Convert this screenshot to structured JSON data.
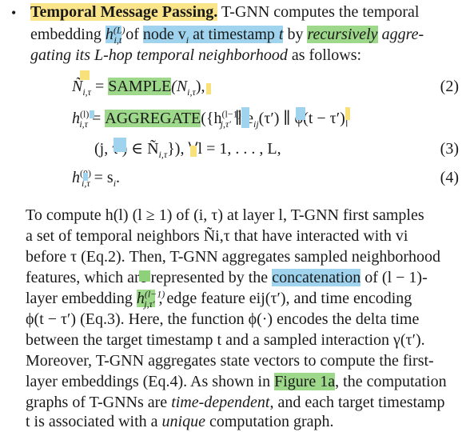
{
  "paragraph1": {
    "bullet": "•",
    "title": "Temporal Message Passing.",
    "l1_a": "T-GNN computes the temporal",
    "l2_a": "embedding",
    "l2_b": "of",
    "l2_c": "node v",
    "l2_c_sub": "i",
    "l2_d": "at timestamp",
    "l2_e": "t",
    "l2_f": "by",
    "l2_g": "recursively",
    "l2_h": "aggre-",
    "l3": "gating its L-hop temporal neighborhood",
    "l3_b": "as follows:"
  },
  "equations": {
    "eq2_lhs": "Ñ",
    "eq2_rhs_fn": "SAMPLE",
    "eq2_rhs_arg": "(N",
    "eq2_rhs_end": "),",
    "eq2_num": "(2)",
    "eq3_lhs": "h",
    "eq3_fn": "AGGREGATE",
    "eq3_body": "({h",
    "eq3_body2": "∥ e",
    "eq3_body3": "(τ′) ∥ ϕ(t − τ′)|",
    "eq3b_body": "(j, τ′) ∈ Ñ",
    "eq3b_end": "}), ∀l = 1, . . . , L,",
    "eq3_num": "(3)",
    "eq4_lhs": "h",
    "eq4_rhs": "= s",
    "eq4_end": ".",
    "eq4_num": "(4)"
  },
  "paragraph2": {
    "lines": [
      "To compute h(l) (l ≥ 1) of (i, τ) at layer l, T-GNN first samples",
      "a set of temporal neighbors Ñi,τ that have interacted with vi",
      "before τ (Eq.2). Then, T-GNN aggregates sampled neighborhood",
      "features, which are represented by the",
      "of (l − 1)-",
      "layer embedding",
      ", edge feature eij(τ′), and time encoding",
      "ϕ(t − τ′) (Eq.3). Here, the function ϕ(·) encodes the delta time",
      "between the target timestamp t and a sampled interaction γ(τ′).",
      "Moreover, T-GNN aggregates state vectors to compute the first-",
      "layer embeddings (Eq.4). As shown in",
      ", the computation",
      "graphs of T-GNNs are",
      "time-dependent",
      ", and each target timestamp",
      "t is associated with a",
      "unique",
      "computation graph."
    ],
    "concatenation": "concatenation",
    "figure_ref": "Figure 1a"
  }
}
